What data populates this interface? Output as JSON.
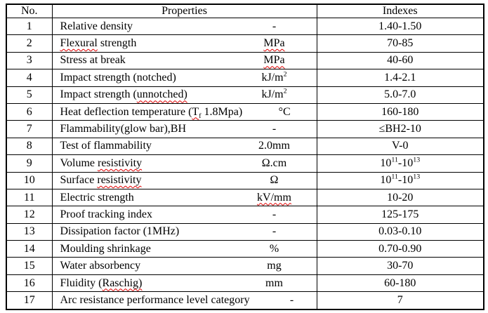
{
  "table": {
    "headers": {
      "no": "No.",
      "properties": "Properties",
      "indexes": "Indexes"
    },
    "squiggle_color": "#e00000",
    "rows": [
      {
        "no": "1",
        "property": [
          {
            "t": "Relative density"
          }
        ],
        "unit": [
          {
            "t": "-"
          }
        ],
        "index": [
          {
            "t": "1.40-1.50"
          }
        ]
      },
      {
        "no": "2",
        "property": [
          {
            "t": "Flexural",
            "sq": true
          },
          {
            "t": " strength"
          }
        ],
        "unit": [
          {
            "t": "MPa",
            "sq": true
          }
        ],
        "index": [
          {
            "t": "70-85"
          }
        ]
      },
      {
        "no": "3",
        "property": [
          {
            "t": "Stress at break"
          }
        ],
        "unit": [
          {
            "t": "MPa",
            "sq": true
          }
        ],
        "index": [
          {
            "t": "40-60"
          }
        ]
      },
      {
        "no": "4",
        "property": [
          {
            "t": "Impact strength (notched)"
          }
        ],
        "unit": [
          {
            "t": "kJ/m"
          },
          {
            "t": "2",
            "sup": true
          }
        ],
        "index": [
          {
            "t": "1.4-2.1"
          }
        ]
      },
      {
        "no": "5",
        "property": [
          {
            "t": "Impact strength ("
          },
          {
            "t": "unnotched)",
            "sq": true
          }
        ],
        "unit": [
          {
            "t": "kJ/m"
          },
          {
            "t": "2",
            "sup": true
          }
        ],
        "index": [
          {
            "t": "5.0-7.0"
          }
        ]
      },
      {
        "no": "6",
        "property": [
          {
            "t": "Heat deflection temperature ("
          },
          {
            "t": "T",
            "sq": true
          },
          {
            "t": "f",
            "sub": true,
            "sq": true
          },
          {
            "t": " 1.8Mpa)"
          }
        ],
        "unit": [
          {
            "t": "°C"
          }
        ],
        "index": [
          {
            "t": "160-180"
          }
        ]
      },
      {
        "no": "7",
        "property": [
          {
            "t": "Flammability(glow bar),BH"
          }
        ],
        "unit": [
          {
            "t": "-"
          }
        ],
        "index": [
          {
            "t": "≤BH2-10"
          }
        ]
      },
      {
        "no": "8",
        "property": [
          {
            "t": "Test of flammability"
          }
        ],
        "unit": [
          {
            "t": "2.0mm"
          }
        ],
        "index": [
          {
            "t": "V-0"
          }
        ]
      },
      {
        "no": "9",
        "property": [
          {
            "t": "Volume "
          },
          {
            "t": "resistivity",
            "sq": true
          }
        ],
        "unit": [
          {
            "t": "Ω.cm"
          }
        ],
        "index": [
          {
            "t": "10"
          },
          {
            "t": "11",
            "sup": true
          },
          {
            "t": "-10"
          },
          {
            "t": "13",
            "sup": true
          }
        ]
      },
      {
        "no": "10",
        "property": [
          {
            "t": "Surface "
          },
          {
            "t": "resistivity",
            "sq": true
          }
        ],
        "unit": [
          {
            "t": "Ω"
          }
        ],
        "index": [
          {
            "t": "10"
          },
          {
            "t": "11",
            "sup": true
          },
          {
            "t": "-10"
          },
          {
            "t": "13",
            "sup": true
          }
        ]
      },
      {
        "no": "11",
        "property": [
          {
            "t": "Electric strength"
          }
        ],
        "unit": [
          {
            "t": "kV/mm",
            "sq": true
          }
        ],
        "index": [
          {
            "t": "10-20"
          }
        ]
      },
      {
        "no": "12",
        "property": [
          {
            "t": "Proof tracking index"
          }
        ],
        "unit": [
          {
            "t": "-"
          }
        ],
        "index": [
          {
            "t": "125-175"
          }
        ]
      },
      {
        "no": "13",
        "property": [
          {
            "t": "Dissipation factor (1MHz)"
          }
        ],
        "unit": [
          {
            "t": "-"
          }
        ],
        "index": [
          {
            "t": "0.03-0.10"
          }
        ]
      },
      {
        "no": "14",
        "property": [
          {
            "t": "Moulding shrinkage"
          }
        ],
        "unit": [
          {
            "t": "%"
          }
        ],
        "index": [
          {
            "t": "0.70-0.90"
          }
        ]
      },
      {
        "no": "15",
        "property": [
          {
            "t": "Water absorbency"
          }
        ],
        "unit": [
          {
            "t": "mg"
          }
        ],
        "index": [
          {
            "t": "30-70"
          }
        ]
      },
      {
        "no": "16",
        "property": [
          {
            "t": "Fluidity ("
          },
          {
            "t": "Raschig)",
            "sq": true
          }
        ],
        "unit": [
          {
            "t": "mm"
          }
        ],
        "index": [
          {
            "t": "60-180"
          }
        ]
      },
      {
        "no": "17",
        "property": [
          {
            "t": "Arc resistance performance level category"
          }
        ],
        "unit": [
          {
            "t": "-"
          }
        ],
        "index": [
          {
            "t": "7"
          }
        ]
      }
    ]
  }
}
